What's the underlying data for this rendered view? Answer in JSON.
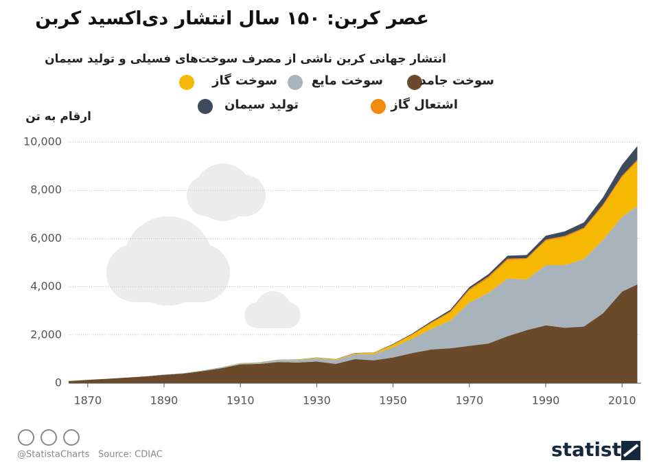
{
  "chart_data": {
    "type": "stacked-area",
    "title": "عصر کربن: ۱۵۰ سال انتشار دی‌اکسید کربن",
    "subtitle": "انتشار جهانی کربن ناشی از مصرف سوخت‌های فسیلی و تولید سیمان",
    "y_label": "ارقام به تن",
    "x": [
      1865,
      1870,
      1875,
      1880,
      1885,
      1890,
      1895,
      1900,
      1905,
      1910,
      1915,
      1920,
      1925,
      1930,
      1935,
      1940,
      1945,
      1950,
      1955,
      1960,
      1965,
      1970,
      1975,
      1980,
      1985,
      1990,
      1995,
      2000,
      2005,
      2010,
      2014
    ],
    "series": [
      {
        "name": "سوخت جامد",
        "color": "#6b4a2b",
        "values": [
          90,
          140,
          180,
          230,
          280,
          350,
          400,
          500,
          620,
          780,
          800,
          880,
          860,
          900,
          800,
          1000,
          950,
          1070,
          1250,
          1400,
          1450,
          1550,
          1650,
          1950,
          2200,
          2400,
          2300,
          2350,
          2900,
          3800,
          4100
        ]
      },
      {
        "name": "سوخت مایع",
        "color": "#a8b3bb",
        "values": [
          0,
          1,
          2,
          4,
          6,
          10,
          15,
          20,
          30,
          40,
          50,
          80,
          100,
          130,
          150,
          200,
          250,
          420,
          600,
          850,
          1150,
          1800,
          2100,
          2400,
          2100,
          2500,
          2600,
          2800,
          3050,
          3100,
          3250
        ]
      },
      {
        "name": "سوخت گاز",
        "color": "#f6b800",
        "values": [
          0,
          0,
          0,
          0,
          0,
          1,
          2,
          5,
          7,
          10,
          12,
          15,
          20,
          30,
          35,
          40,
          60,
          100,
          150,
          230,
          330,
          500,
          600,
          750,
          850,
          1000,
          1150,
          1250,
          1400,
          1650,
          1850
        ]
      },
      {
        "name": "اشتعال گاز",
        "color": "#f28a0b",
        "values": [
          0,
          0,
          0,
          0,
          0,
          0,
          0,
          0,
          0,
          0,
          0,
          0,
          0,
          0,
          0,
          0,
          0,
          20,
          30,
          40,
          50,
          60,
          80,
          70,
          40,
          60,
          60,
          50,
          60,
          60,
          70
        ]
      },
      {
        "name": "تولید سیمان",
        "color": "#3d4b5c",
        "values": [
          0,
          0,
          0,
          0,
          0,
          0,
          0,
          1,
          2,
          3,
          4,
          5,
          8,
          10,
          12,
          15,
          10,
          20,
          30,
          50,
          65,
          80,
          95,
          120,
          130,
          160,
          190,
          220,
          300,
          450,
          570
        ]
      }
    ],
    "xlim": [
      1865,
      2015
    ],
    "xticks": [
      1870,
      1890,
      1910,
      1930,
      1950,
      1970,
      1990,
      2010
    ],
    "ylim": [
      0,
      10200
    ],
    "yticks": [
      0,
      {
        "value": 2000,
        "label": "2,000"
      },
      {
        "value": 4000,
        "label": "4,000"
      },
      {
        "value": 6000,
        "label": "6,000"
      },
      {
        "value": 8000,
        "label": "8,000"
      },
      {
        "value": 10000,
        "label": "10,000"
      }
    ],
    "grid": true
  },
  "footer": {
    "handle": "@StatistaCharts",
    "source": "Source: CDIAC",
    "brand": "statista"
  }
}
